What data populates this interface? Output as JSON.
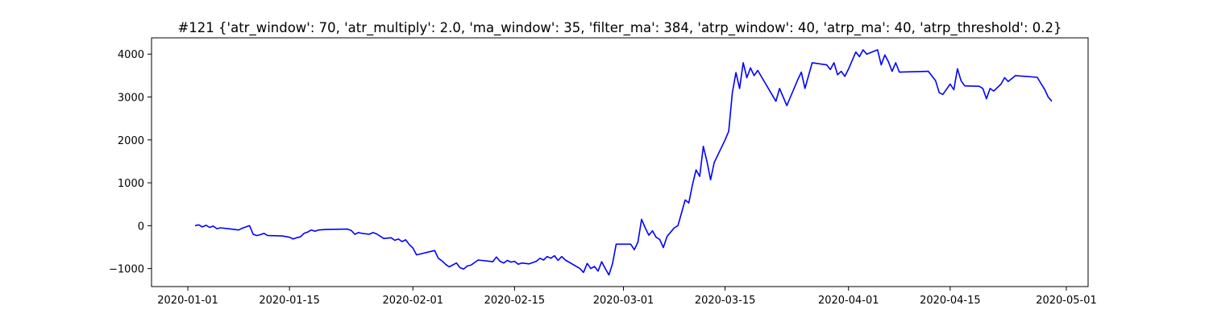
{
  "chart_data": {
    "type": "line",
    "title": "#121 {'atr_window': 70, 'atr_multiply': 2.0, 'ma_window': 35, 'filter_ma': 384, 'atrp_window': 40, 'atrp_ma': 40, 'atrp_threshold': 0.2}",
    "xlabel": "",
    "ylabel": "",
    "x_type": "date",
    "xlim": [
      "2019-12-27",
      "2020-05-04"
    ],
    "ylim": [
      -1420,
      4380
    ],
    "x_ticks": [
      "2020-01-01",
      "2020-01-15",
      "2020-02-01",
      "2020-02-15",
      "2020-03-01",
      "2020-03-15",
      "2020-04-01",
      "2020-04-15",
      "2020-05-01"
    ],
    "y_ticks": [
      -1000,
      0,
      1000,
      2000,
      3000,
      4000
    ],
    "y_tick_labels": [
      "−1000",
      "0",
      "1000",
      "2000",
      "3000",
      "4000"
    ],
    "grid": false,
    "legend": "none",
    "line_color": "#0000ff",
    "series": [
      {
        "points": [
          [
            "2020-01-02",
            0
          ],
          [
            "2020-01-02T12:00",
            20
          ],
          [
            "2020-01-03",
            -30
          ],
          [
            "2020-01-03T12:00",
            10
          ],
          [
            "2020-01-04",
            -40
          ],
          [
            "2020-01-04T12:00",
            -10
          ],
          [
            "2020-01-05",
            -70
          ],
          [
            "2020-01-05T12:00",
            -50
          ],
          [
            "2020-01-07",
            -80
          ],
          [
            "2020-01-08",
            -100
          ],
          [
            "2020-01-08T12:00",
            -60
          ],
          [
            "2020-01-09",
            -30
          ],
          [
            "2020-01-09T12:00",
            0
          ],
          [
            "2020-01-10",
            -200
          ],
          [
            "2020-01-10T12:00",
            -230
          ],
          [
            "2020-01-11",
            -210
          ],
          [
            "2020-01-11T12:00",
            -180
          ],
          [
            "2020-01-12",
            -230
          ],
          [
            "2020-01-14",
            -240
          ],
          [
            "2020-01-15",
            -270
          ],
          [
            "2020-01-15T12:00",
            -310
          ],
          [
            "2020-01-16",
            -280
          ],
          [
            "2020-01-16T12:00",
            -260
          ],
          [
            "2020-01-17",
            -180
          ],
          [
            "2020-01-17T12:00",
            -150
          ],
          [
            "2020-01-18",
            -100
          ],
          [
            "2020-01-18T12:00",
            -130
          ],
          [
            "2020-01-19",
            -100
          ],
          [
            "2020-01-20",
            -90
          ],
          [
            "2020-01-23",
            -80
          ],
          [
            "2020-01-23T12:00",
            -110
          ],
          [
            "2020-01-24",
            -200
          ],
          [
            "2020-01-24T12:00",
            -160
          ],
          [
            "2020-01-25",
            -180
          ],
          [
            "2020-01-26",
            -200
          ],
          [
            "2020-01-26T12:00",
            -160
          ],
          [
            "2020-01-27",
            -190
          ],
          [
            "2020-01-28",
            -300
          ],
          [
            "2020-01-29",
            -280
          ],
          [
            "2020-01-29T12:00",
            -340
          ],
          [
            "2020-01-30",
            -310
          ],
          [
            "2020-01-30T12:00",
            -370
          ],
          [
            "2020-01-31",
            -330
          ],
          [
            "2020-01-31T12:00",
            -440
          ],
          [
            "2020-02-01",
            -520
          ],
          [
            "2020-02-01T12:00",
            -680
          ],
          [
            "2020-02-04",
            -580
          ],
          [
            "2020-02-04T12:00",
            -760
          ],
          [
            "2020-02-05",
            -820
          ],
          [
            "2020-02-05T12:00",
            -900
          ],
          [
            "2020-02-06",
            -960
          ],
          [
            "2020-02-07",
            -870
          ],
          [
            "2020-02-07T12:00",
            -980
          ],
          [
            "2020-02-08",
            -1010
          ],
          [
            "2020-02-08T12:00",
            -940
          ],
          [
            "2020-02-09",
            -920
          ],
          [
            "2020-02-10",
            -800
          ],
          [
            "2020-02-12",
            -840
          ],
          [
            "2020-02-12T12:00",
            -730
          ],
          [
            "2020-02-13",
            -830
          ],
          [
            "2020-02-13T12:00",
            -870
          ],
          [
            "2020-02-14",
            -810
          ],
          [
            "2020-02-14T12:00",
            -850
          ],
          [
            "2020-02-15",
            -830
          ],
          [
            "2020-02-15T12:00",
            -900
          ],
          [
            "2020-02-16",
            -870
          ],
          [
            "2020-02-17",
            -890
          ],
          [
            "2020-02-18",
            -830
          ],
          [
            "2020-02-18T12:00",
            -760
          ],
          [
            "2020-02-19",
            -800
          ],
          [
            "2020-02-19T12:00",
            -720
          ],
          [
            "2020-02-20",
            -760
          ],
          [
            "2020-02-20T12:00",
            -700
          ],
          [
            "2020-02-21",
            -810
          ],
          [
            "2020-02-21T12:00",
            -720
          ],
          [
            "2020-02-22",
            -800
          ],
          [
            "2020-02-24",
            -1000
          ],
          [
            "2020-02-24T12:00",
            -1090
          ],
          [
            "2020-02-25",
            -880
          ],
          [
            "2020-02-25T12:00",
            -1000
          ],
          [
            "2020-02-26",
            -950
          ],
          [
            "2020-02-26T12:00",
            -1060
          ],
          [
            "2020-02-27",
            -840
          ],
          [
            "2020-02-27T12:00",
            -1000
          ],
          [
            "2020-02-28",
            -1150
          ],
          [
            "2020-02-28T12:00",
            -880
          ],
          [
            "2020-02-29",
            -430
          ],
          [
            "2020-03-02",
            -430
          ],
          [
            "2020-03-02T12:00",
            -560
          ],
          [
            "2020-03-03",
            -380
          ],
          [
            "2020-03-03T12:00",
            150
          ],
          [
            "2020-03-04",
            -50
          ],
          [
            "2020-03-04T12:00",
            -220
          ],
          [
            "2020-03-05",
            -120
          ],
          [
            "2020-03-05T12:00",
            -270
          ],
          [
            "2020-03-06",
            -320
          ],
          [
            "2020-03-06T12:00",
            -510
          ],
          [
            "2020-03-07",
            -250
          ],
          [
            "2020-03-08",
            -50
          ],
          [
            "2020-03-08T12:00",
            0
          ],
          [
            "2020-03-09",
            300
          ],
          [
            "2020-03-09T12:00",
            600
          ],
          [
            "2020-03-10",
            530
          ],
          [
            "2020-03-10T12:00",
            950
          ],
          [
            "2020-03-11",
            1300
          ],
          [
            "2020-03-11T12:00",
            1150
          ],
          [
            "2020-03-12",
            1850
          ],
          [
            "2020-03-12T12:00",
            1500
          ],
          [
            "2020-03-13",
            1070
          ],
          [
            "2020-03-13T12:00",
            1470
          ],
          [
            "2020-03-15",
            2000
          ],
          [
            "2020-03-15T12:00",
            2200
          ],
          [
            "2020-03-16",
            3100
          ],
          [
            "2020-03-16T12:00",
            3570
          ],
          [
            "2020-03-17",
            3200
          ],
          [
            "2020-03-17T12:00",
            3800
          ],
          [
            "2020-03-18",
            3450
          ],
          [
            "2020-03-18T12:00",
            3680
          ],
          [
            "2020-03-19",
            3500
          ],
          [
            "2020-03-19T12:00",
            3620
          ],
          [
            "2020-03-22",
            2900
          ],
          [
            "2020-03-22T12:00",
            3200
          ],
          [
            "2020-03-23",
            3000
          ],
          [
            "2020-03-23T12:00",
            2800
          ],
          [
            "2020-03-24",
            3000
          ],
          [
            "2020-03-25",
            3400
          ],
          [
            "2020-03-25T12:00",
            3580
          ],
          [
            "2020-03-26",
            3200
          ],
          [
            "2020-03-27",
            3800
          ],
          [
            "2020-03-29",
            3750
          ],
          [
            "2020-03-29T12:00",
            3640
          ],
          [
            "2020-03-30",
            3800
          ],
          [
            "2020-03-30T12:00",
            3520
          ],
          [
            "2020-03-31",
            3600
          ],
          [
            "2020-03-31T12:00",
            3480
          ],
          [
            "2020-04-01",
            3650
          ],
          [
            "2020-04-02",
            4050
          ],
          [
            "2020-04-02T12:00",
            3940
          ],
          [
            "2020-04-03",
            4100
          ],
          [
            "2020-04-03T12:00",
            4000
          ],
          [
            "2020-04-05",
            4100
          ],
          [
            "2020-04-05T12:00",
            3750
          ],
          [
            "2020-04-06",
            3980
          ],
          [
            "2020-04-06T12:00",
            3820
          ],
          [
            "2020-04-07",
            3600
          ],
          [
            "2020-04-07T12:00",
            3800
          ],
          [
            "2020-04-08",
            3580
          ],
          [
            "2020-04-12",
            3600
          ],
          [
            "2020-04-13",
            3380
          ],
          [
            "2020-04-13T12:00",
            3100
          ],
          [
            "2020-04-14",
            3060
          ],
          [
            "2020-04-14T12:00",
            3180
          ],
          [
            "2020-04-15",
            3300
          ],
          [
            "2020-04-15T12:00",
            3170
          ],
          [
            "2020-04-16",
            3660
          ],
          [
            "2020-04-16T12:00",
            3380
          ],
          [
            "2020-04-17",
            3260
          ],
          [
            "2020-04-19",
            3250
          ],
          [
            "2020-04-19T12:00",
            3200
          ],
          [
            "2020-04-20",
            2960
          ],
          [
            "2020-04-20T12:00",
            3200
          ],
          [
            "2020-04-21",
            3140
          ],
          [
            "2020-04-22",
            3300
          ],
          [
            "2020-04-22T12:00",
            3450
          ],
          [
            "2020-04-23",
            3360
          ],
          [
            "2020-04-24",
            3500
          ],
          [
            "2020-04-27",
            3460
          ],
          [
            "2020-04-27T12:00",
            3320
          ],
          [
            "2020-04-28",
            3180
          ],
          [
            "2020-04-28T12:00",
            3000
          ],
          [
            "2020-04-29",
            2900
          ]
        ]
      }
    ]
  }
}
